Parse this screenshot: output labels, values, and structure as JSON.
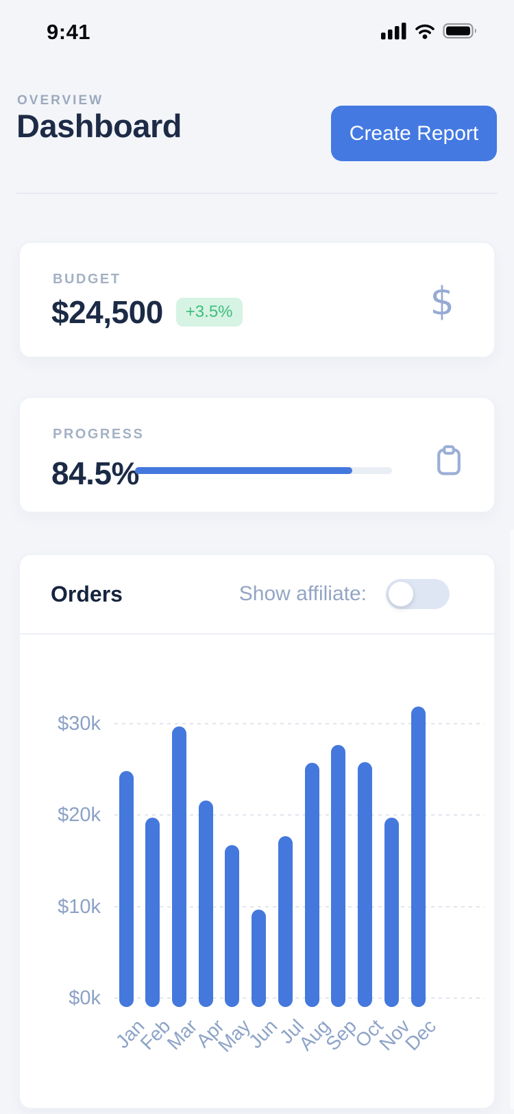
{
  "status_bar": {
    "time": "9:41",
    "icons": [
      "cellular-signal-icon",
      "wifi-icon",
      "battery-icon"
    ]
  },
  "header": {
    "eyebrow": "OVERVIEW",
    "title": "Dashboard",
    "button_label": "Create Report"
  },
  "budget_card": {
    "label": "BUDGET",
    "value": "$24,500",
    "delta_badge": "+3.5%",
    "icon": "dollar-icon"
  },
  "progress_card": {
    "label": "PROGRESS",
    "value": "84.5%",
    "percent": 84.5,
    "icon": "clipboard-icon"
  },
  "orders_card": {
    "title": "Orders",
    "toggle_label": "Show affiliate:",
    "toggle_state": "off"
  },
  "chart_data": {
    "type": "bar",
    "title": "Orders",
    "categories": [
      "Jan",
      "Feb",
      "Mar",
      "Apr",
      "May",
      "Jun",
      "Jul",
      "Aug",
      "Sep",
      "Oct",
      "Nov",
      "Dec"
    ],
    "values": [
      24.8,
      19.7,
      29.7,
      21.6,
      16.7,
      9.7,
      17.7,
      25.7,
      27.7,
      25.8,
      19.7,
      31.9
    ],
    "unit": "thousand dollars (USD)",
    "xlabel": "",
    "ylabel": "",
    "yticks": [
      {
        "value": 0,
        "label": "$0k"
      },
      {
        "value": 10,
        "label": "$10k"
      },
      {
        "value": 20,
        "label": "$20k"
      },
      {
        "value": 30,
        "label": "$30k"
      }
    ],
    "ylim": [
      0,
      33
    ],
    "grid": "horizontal-dotted",
    "legend": "none",
    "bar_color": "#4478DD"
  },
  "colors": {
    "accent_blue": "#4479E2",
    "bar_blue": "#4478DD",
    "navy_text": "#1D2B46",
    "muted_label": "#A4B1C4",
    "eyebrow_gray": "#9CA9BD",
    "badge_green_text": "#3EBE7D",
    "badge_green_bg": "#D6F3E3",
    "slate_icon": "#96AAD3",
    "axis_label": "#8BA1C6",
    "toggle_track": "#DFE6F3",
    "page_bg": "#F3F5F9"
  }
}
